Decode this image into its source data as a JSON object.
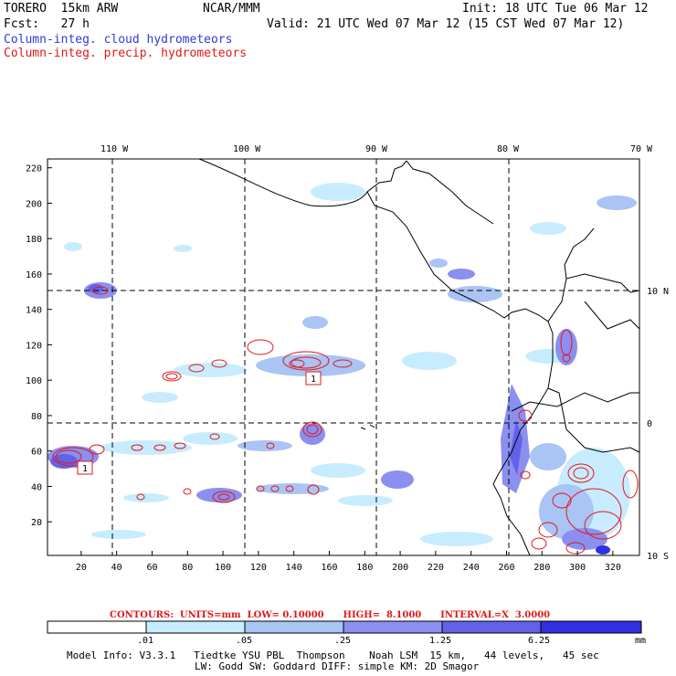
{
  "header": {
    "model_name": "TORERO  15km ARW",
    "center": "NCAR/MMM",
    "init": "Init: 18 UTC Tue 06 Mar 12",
    "fcst": "Fcst:   27 h",
    "valid": "Valid: 21 UTC Wed 07 Mar 12 (15 CST Wed 07 Mar 12)",
    "field1": "Column-integ. cloud hydrometeors",
    "field2": "Column-integ. precip. hydrometeors"
  },
  "colors": {
    "blue_text": "#2d3bd8",
    "red_text": "#e01818",
    "shade_1": "#c8ecff",
    "shade_2": "#a9c4f5",
    "shade_3": "#8b8ff0",
    "shade_4": "#6262e8",
    "shade_5": "#3030e0"
  },
  "map": {
    "lon_labels": [
      "110 W",
      "100 W",
      "90 W",
      "80 W",
      "70 W"
    ],
    "lat_labels": [
      "10 N",
      "0",
      "10 S"
    ],
    "x_ticks": [
      "20",
      "40",
      "60",
      "80",
      "100",
      "120",
      "140",
      "160",
      "180",
      "200",
      "220",
      "240",
      "260",
      "280",
      "300",
      "320"
    ],
    "y_ticks": [
      "20",
      "40",
      "60",
      "80",
      "100",
      "120",
      "140",
      "160",
      "180",
      "200",
      "220"
    ],
    "box_labels": [
      "1",
      "1"
    ]
  },
  "contours": {
    "text": "CONTOURS:  UNITS=mm  LOW= 0.10000      HIGH=  8.1000      INTERVAL=X  3.0000"
  },
  "colorbar": {
    "labels": [
      ".01",
      ".05",
      ".25",
      "1.25",
      "6.25"
    ],
    "unit": "mm"
  },
  "model_info": {
    "line1": "Model Info: V3.3.1   Tiedtke YSU PBL  Thompson    Noah LSM  15 km,   44 levels,   45 sec",
    "line2": "LW: Godd SW: Goddard DIFF: simple KM: 2D Smagor"
  }
}
